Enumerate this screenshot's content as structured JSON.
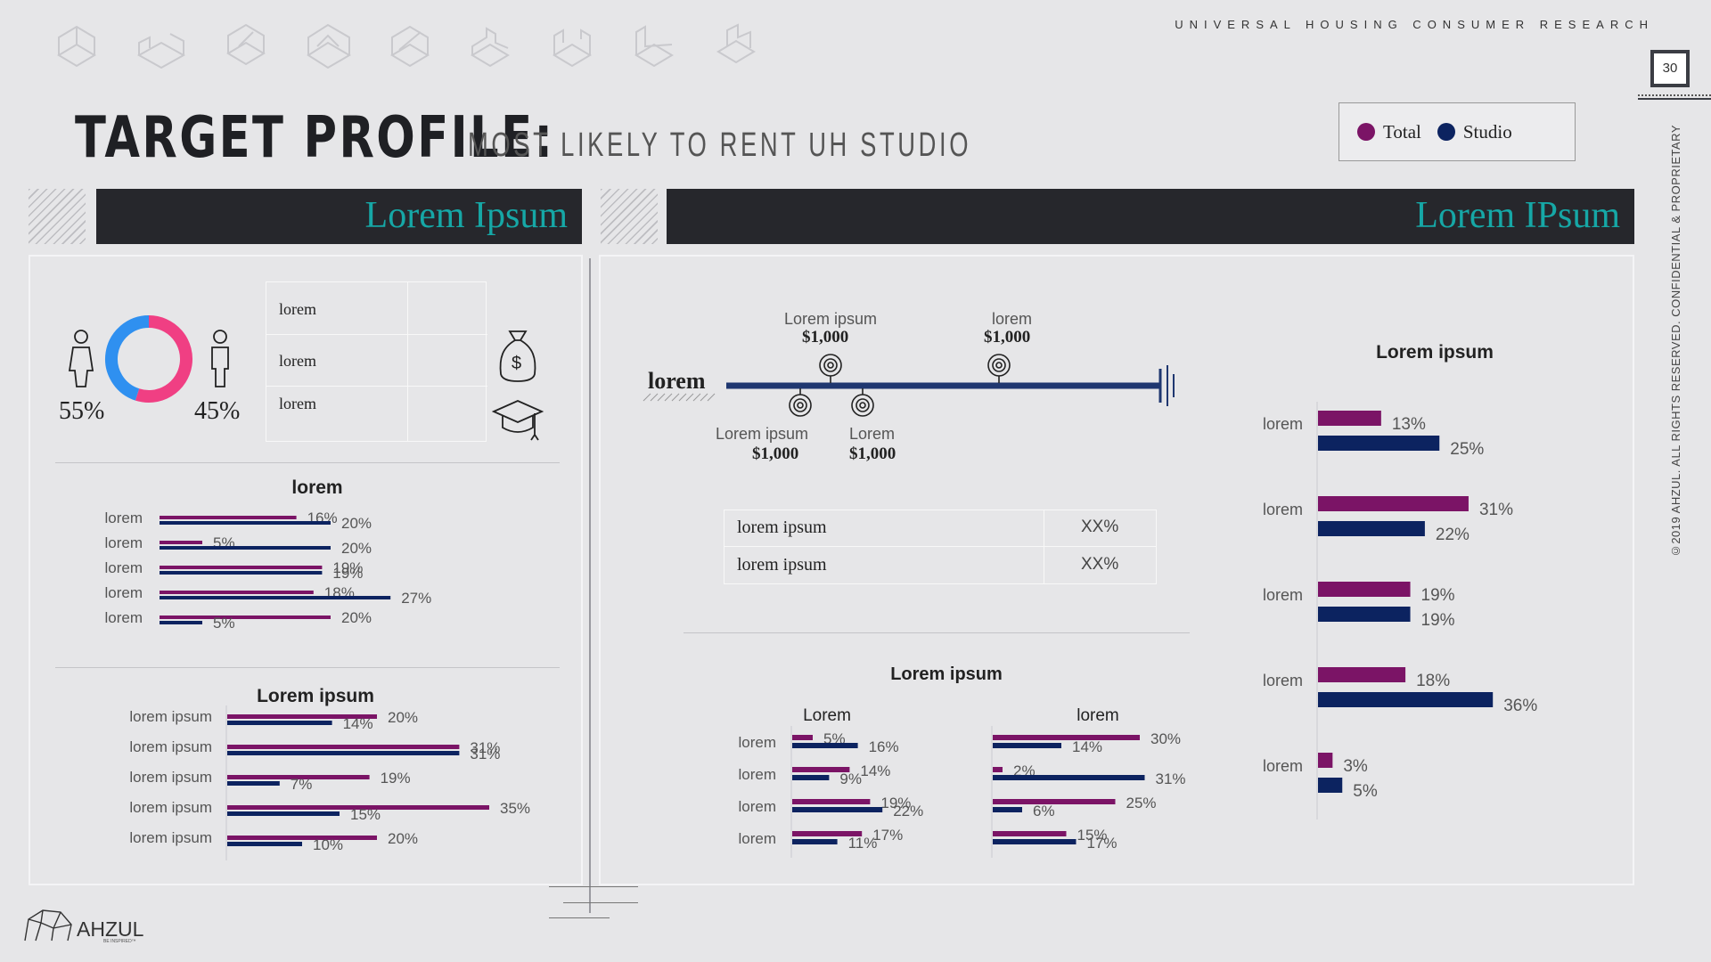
{
  "header": {
    "brand_line": "UNIVERSAL HOUSING CONSUMER RESEARCH",
    "page_number": "30",
    "title": "TARGET PROFILE:",
    "subtitle": "MOST LIKELY TO RENT UH STUDIO",
    "legal": "©2019 AHZUL. ALL RIGHTS RESERVED. CONFIDENTIAL & PROPRIETARY"
  },
  "legend": {
    "items": [
      {
        "label": "Total",
        "color": "#7b1466"
      },
      {
        "label": "Studio",
        "color": "#0c2360"
      }
    ]
  },
  "colors": {
    "total": "#7b1466",
    "studio": "#0c2360",
    "accent": "#16a7a6",
    "banner": "#26272c"
  },
  "left_panel": {
    "banner_title": "Lorem Ipsum",
    "gender": {
      "left_pct": "55%",
      "right_pct": "45%",
      "donut": [
        {
          "label": "55%",
          "value": 55,
          "color": "#f03f83"
        },
        {
          "label": "45%",
          "value": 45,
          "color": "#2f90f0"
        }
      ]
    },
    "table_rows": [
      "lorem",
      "lorem",
      "lorem"
    ]
  },
  "right_panel": {
    "banner_title": "Lorem IPsum",
    "timeline": {
      "axis_label": "lorem",
      "top_markers": [
        {
          "label": "Lorem ipsum",
          "value": "$1,000"
        },
        {
          "label": "lorem",
          "value": "$1,000"
        }
      ],
      "bottom_markers": [
        {
          "label": "Lorem ipsum",
          "value": "$1,000"
        },
        {
          "label": "Lorem",
          "value": "$1,000"
        }
      ]
    },
    "table": [
      {
        "label": "lorem ipsum",
        "value": "XX%"
      },
      {
        "label": "lorem ipsum",
        "value": "XX%"
      }
    ]
  },
  "footer": {
    "logo_text": "AHZUL",
    "tagline": "BE INSPIRED™"
  },
  "chart_data": [
    {
      "type": "bar",
      "title": "lorem",
      "categories": [
        "lorem",
        "lorem",
        "lorem",
        "lorem",
        "lorem"
      ],
      "series": [
        {
          "name": "Total",
          "values": [
            16,
            5,
            19,
            18,
            20
          ],
          "labels": [
            "16%",
            "5%",
            "19%",
            "18%",
            "20%"
          ]
        },
        {
          "name": "Studio",
          "values": [
            20,
            20,
            19,
            27,
            5
          ],
          "labels": [
            "20%",
            "20%",
            "19%",
            "27%",
            "5%"
          ]
        }
      ]
    },
    {
      "type": "bar",
      "title": "Lorem ipsum",
      "categories": [
        "lorem ipsum",
        "lorem ipsum",
        "lorem ipsum",
        "lorem ipsum",
        "lorem ipsum"
      ],
      "series": [
        {
          "name": "Total",
          "values": [
            20,
            31,
            19,
            35,
            20
          ],
          "labels": [
            "20%",
            "31%",
            "19%",
            "35%",
            "20%"
          ]
        },
        {
          "name": "Studio",
          "values": [
            14,
            31,
            7,
            15,
            10
          ],
          "labels": [
            "14%",
            "31%",
            "7%",
            "15%",
            "10%"
          ]
        }
      ]
    },
    {
      "type": "bar",
      "title": "Lorem ipsum",
      "subtitle": "Lorem",
      "categories": [
        "lorem",
        "lorem",
        "lorem",
        "lorem"
      ],
      "series": [
        {
          "name": "Total",
          "values": [
            5,
            14,
            19,
            17
          ],
          "labels": [
            "5%",
            "14%",
            "19%",
            "17%"
          ]
        },
        {
          "name": "Studio",
          "values": [
            16,
            9,
            22,
            11
          ],
          "labels": [
            "16%",
            "9%",
            "22%",
            "11%"
          ]
        }
      ]
    },
    {
      "type": "bar",
      "subtitle": "lorem",
      "categories": [
        "lorem",
        "lorem",
        "lorem",
        "lorem"
      ],
      "series": [
        {
          "name": "Total",
          "values": [
            30,
            2,
            25,
            15
          ],
          "labels": [
            "30%",
            "2%",
            "25%",
            "15%"
          ]
        },
        {
          "name": "Studio",
          "values": [
            14,
            31,
            6,
            17
          ],
          "labels": [
            "14%",
            "31%",
            "6%",
            "17%"
          ]
        }
      ]
    },
    {
      "type": "bar",
      "title": "Lorem ipsum",
      "categories": [
        "lorem",
        "lorem",
        "lorem",
        "lorem",
        "lorem"
      ],
      "series": [
        {
          "name": "Total",
          "values": [
            13,
            31,
            19,
            18,
            3
          ],
          "labels": [
            "13%",
            "31%",
            "19%",
            "18%",
            "3%"
          ]
        },
        {
          "name": "Studio",
          "values": [
            25,
            22,
            19,
            36,
            5
          ],
          "labels": [
            "25%",
            "22%",
            "19%",
            "36%",
            "5%"
          ]
        }
      ]
    }
  ]
}
